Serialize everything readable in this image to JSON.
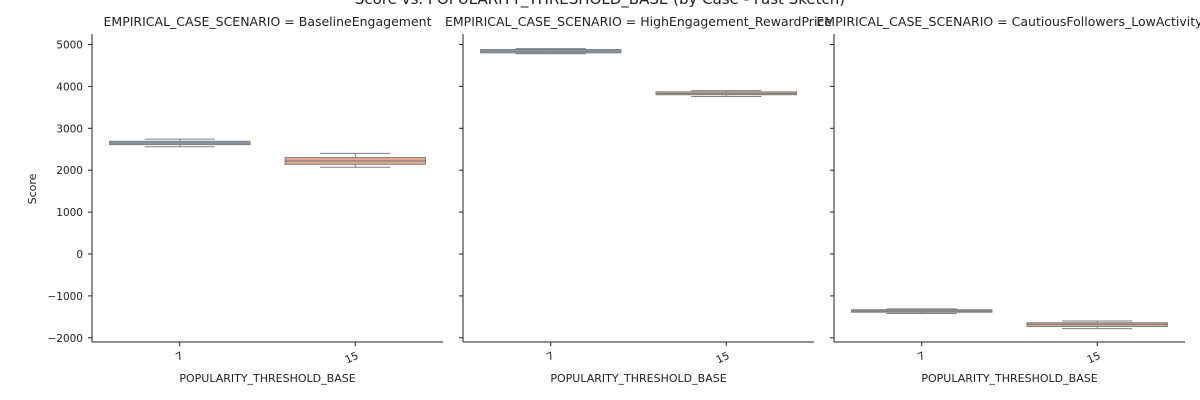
{
  "figure_title": "Score vs. POPULARITY_THRESHOLD_BASE (by Case - Fast Sketch)",
  "chart_data": {
    "type": "box",
    "ylabel": "Score",
    "xlabel": "POPULARITY_THRESHOLD_BASE",
    "ylim": [
      -2100,
      5250
    ],
    "yticks": [
      -2000,
      -1000,
      0,
      1000,
      2000,
      3000,
      4000,
      5000
    ],
    "categories": [
      "7",
      "15"
    ],
    "category_colors": [
      "#92a8bd",
      "#e8a88b"
    ],
    "median_color": "#7f7f7f",
    "grid": false,
    "panels": [
      {
        "title": "EMPIRICAL_CASE_SCENARIO = BaselineEngagement",
        "boxes": [
          {
            "category": "7",
            "min": 2560,
            "q1": 2610,
            "median": 2650,
            "q3": 2690,
            "max": 2740
          },
          {
            "category": "15",
            "min": 2070,
            "q1": 2140,
            "median": 2220,
            "q3": 2300,
            "max": 2400
          }
        ]
      },
      {
        "title": "EMPIRICAL_CASE_SCENARIO = HighEngagement_RewardPrice",
        "boxes": [
          {
            "category": "7",
            "min": 4780,
            "q1": 4800,
            "median": 4840,
            "q3": 4880,
            "max": 4900
          },
          {
            "category": "15",
            "min": 3760,
            "q1": 3800,
            "median": 3830,
            "q3": 3870,
            "max": 3900
          }
        ]
      },
      {
        "title": "EMPIRICAL_CASE_SCENARIO = CautiousFollowers_LowActivity",
        "boxes": [
          {
            "category": "7",
            "min": -1420,
            "q1": -1390,
            "median": -1360,
            "q3": -1330,
            "max": -1310
          },
          {
            "category": "15",
            "min": -1780,
            "q1": -1730,
            "median": -1680,
            "q3": -1640,
            "max": -1600
          }
        ]
      }
    ]
  }
}
